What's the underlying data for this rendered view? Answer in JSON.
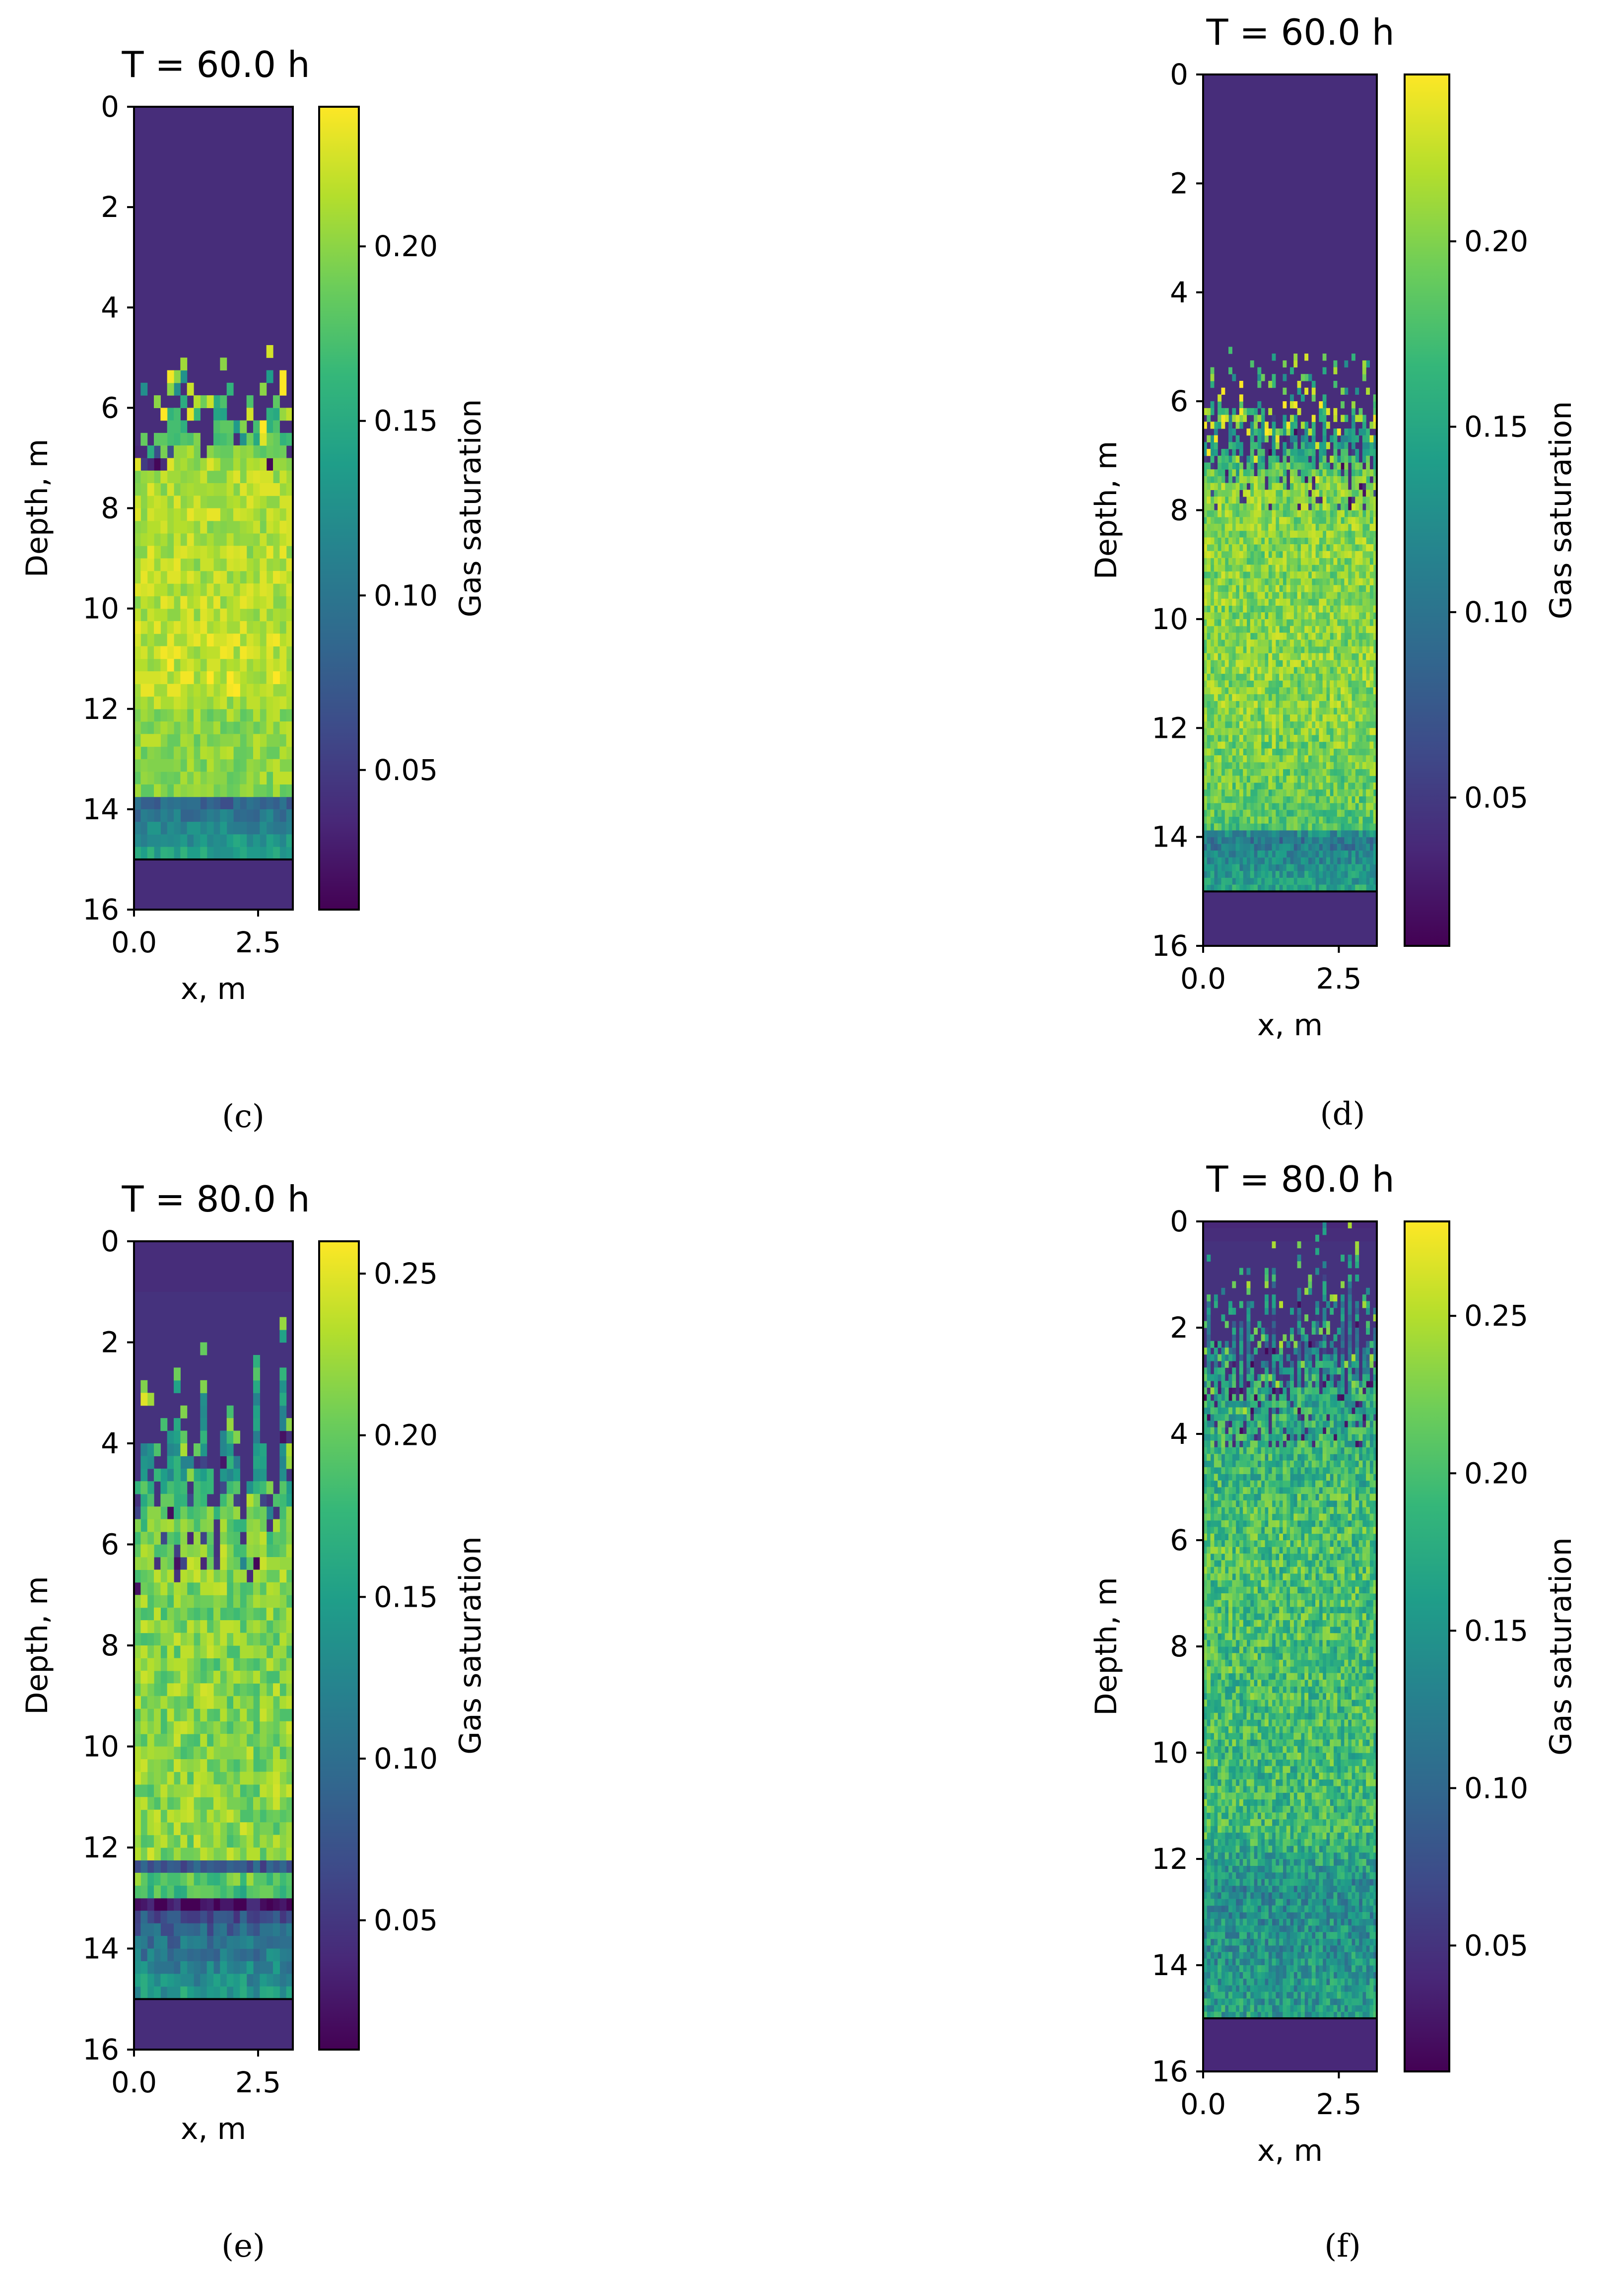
{
  "figure": {
    "colormap": "viridis",
    "colors": {
      "axis": "#000000",
      "background": "#ffffff"
    },
    "captions": [
      "(c)",
      "(d)",
      "(e)",
      "(f)"
    ]
  },
  "chart_data": [
    {
      "type": "heatmap",
      "panel": "c",
      "title": "T = 60.0 h",
      "xlabel": "x, m",
      "ylabel": "Depth, m",
      "colorbar_label": "Gas saturation",
      "xlim": [
        0.0,
        3.2
      ],
      "ylim": [
        16,
        0
      ],
      "xticks": [
        0.0,
        2.5
      ],
      "xtick_labels": [
        "0.0",
        "2.5"
      ],
      "yticks": [
        0,
        2,
        4,
        6,
        8,
        10,
        12,
        14,
        16
      ],
      "ytick_labels": [
        "0",
        "2",
        "4",
        "6",
        "8",
        "10",
        "12",
        "14",
        "16"
      ],
      "clim": [
        0.01,
        0.24
      ],
      "cbar_ticks": [
        0.05,
        0.1,
        0.15,
        0.2
      ],
      "cbar_tick_labels": [
        "0.05",
        "0.10",
        "0.15",
        "0.20"
      ],
      "grid": {
        "nx": 24,
        "ny": 64,
        "rough": 0.02
      },
      "profile": [
        [
          0,
          0.04
        ],
        [
          6.2,
          0.04
        ],
        [
          6.5,
          0.16
        ],
        [
          7.0,
          0.21
        ],
        [
          10.0,
          0.215
        ],
        [
          11.7,
          0.22
        ],
        [
          12.0,
          0.2
        ],
        [
          13.7,
          0.2
        ],
        [
          13.8,
          0.08
        ],
        [
          15.0,
          0.15
        ],
        [
          15.05,
          0.04
        ],
        [
          16,
          0.04
        ]
      ],
      "front": {
        "depth": 6.5,
        "amp": 0.7,
        "freq": 0.5
      },
      "floor": 15.0
    },
    {
      "type": "heatmap",
      "panel": "d",
      "title": "T = 60.0 h",
      "xlabel": "x, m",
      "ylabel": "Depth, m",
      "colorbar_label": "Gas saturation",
      "xlim": [
        0.0,
        3.2
      ],
      "ylim": [
        16,
        0
      ],
      "xticks": [
        0.0,
        2.5
      ],
      "xtick_labels": [
        "0.0",
        "2.5"
      ],
      "yticks": [
        0,
        2,
        4,
        6,
        8,
        10,
        12,
        14,
        16
      ],
      "ytick_labels": [
        "0",
        "2",
        "4",
        "6",
        "8",
        "10",
        "12",
        "14",
        "16"
      ],
      "clim": [
        0.01,
        0.245
      ],
      "cbar_ticks": [
        0.05,
        0.1,
        0.15,
        0.2
      ],
      "cbar_tick_labels": [
        "0.05",
        "0.10",
        "0.15",
        "0.20"
      ],
      "grid": {
        "nx": 48,
        "ny": 128,
        "rough": 0.03
      },
      "profile": [
        [
          0,
          0.04
        ],
        [
          5.8,
          0.04
        ],
        [
          6.8,
          0.14
        ],
        [
          7.5,
          0.2
        ],
        [
          12.0,
          0.2
        ],
        [
          13.8,
          0.18
        ],
        [
          14.0,
          0.1
        ],
        [
          15.0,
          0.15
        ],
        [
          15.02,
          0.04
        ],
        [
          16,
          0.04
        ]
      ],
      "front": {
        "depth": 6.8,
        "amp": 1.0,
        "freq": 1.3
      },
      "floor": 15.0
    },
    {
      "type": "heatmap",
      "panel": "e",
      "title": "T = 80.0 h",
      "xlabel": "x, m",
      "ylabel": "Depth, m",
      "colorbar_label": "Gas saturation",
      "xlim": [
        0.0,
        3.2
      ],
      "ylim": [
        16,
        0
      ],
      "xticks": [
        0.0,
        2.5
      ],
      "xtick_labels": [
        "0.0",
        "2.5"
      ],
      "yticks": [
        0,
        2,
        4,
        6,
        8,
        10,
        12,
        14,
        16
      ],
      "ytick_labels": [
        "0",
        "2",
        "4",
        "6",
        "8",
        "10",
        "12",
        "14",
        "16"
      ],
      "clim": [
        0.01,
        0.26
      ],
      "cbar_ticks": [
        0.05,
        0.1,
        0.15,
        0.2,
        0.25
      ],
      "cbar_tick_labels": [
        "0.05",
        "0.10",
        "0.15",
        "0.20",
        "0.25"
      ],
      "grid": {
        "nx": 24,
        "ny": 64,
        "rough": 0.03
      },
      "profile": [
        [
          0,
          0.04
        ],
        [
          3.0,
          0.05
        ],
        [
          4.0,
          0.12
        ],
        [
          5.5,
          0.2
        ],
        [
          6.0,
          0.21
        ],
        [
          12.2,
          0.215
        ],
        [
          12.3,
          0.01
        ],
        [
          12.5,
          0.2
        ],
        [
          13.0,
          0.18
        ],
        [
          13.1,
          0.01
        ],
        [
          13.4,
          0.08
        ],
        [
          15.0,
          0.15
        ],
        [
          15.05,
          0.04
        ],
        [
          16,
          0.04
        ]
      ],
      "front": {
        "depth": 4.5,
        "amp": 2.0,
        "freq": 0.9
      },
      "floor": 15.0
    },
    {
      "type": "heatmap",
      "panel": "f",
      "title": "T = 80.0 h",
      "xlabel": "x, m",
      "ylabel": "Depth, m",
      "colorbar_label": "Gas saturation",
      "xlim": [
        0.0,
        3.2
      ],
      "ylim": [
        16,
        0
      ],
      "xticks": [
        0.0,
        2.5
      ],
      "xtick_labels": [
        "0.0",
        "2.5"
      ],
      "yticks": [
        0,
        2,
        4,
        6,
        8,
        10,
        12,
        14,
        16
      ],
      "ytick_labels": [
        "0",
        "2",
        "4",
        "6",
        "8",
        "10",
        "12",
        "14",
        "16"
      ],
      "clim": [
        0.01,
        0.28
      ],
      "cbar_ticks": [
        0.05,
        0.1,
        0.15,
        0.2,
        0.25
      ],
      "cbar_tick_labels": [
        "0.05",
        "0.10",
        "0.15",
        "0.20",
        "0.25"
      ],
      "grid": {
        "nx": 48,
        "ny": 128,
        "rough": 0.045
      },
      "profile": [
        [
          0,
          0.04
        ],
        [
          1.8,
          0.07
        ],
        [
          3.0,
          0.17
        ],
        [
          6.0,
          0.2
        ],
        [
          11.5,
          0.19
        ],
        [
          12.5,
          0.14
        ],
        [
          14.0,
          0.15
        ],
        [
          15.0,
          0.16
        ],
        [
          15.02,
          0.04
        ],
        [
          16,
          0.04
        ]
      ],
      "front": {
        "depth": 2.5,
        "amp": 1.5,
        "freq": 1.6
      },
      "floor": 15.0
    }
  ]
}
